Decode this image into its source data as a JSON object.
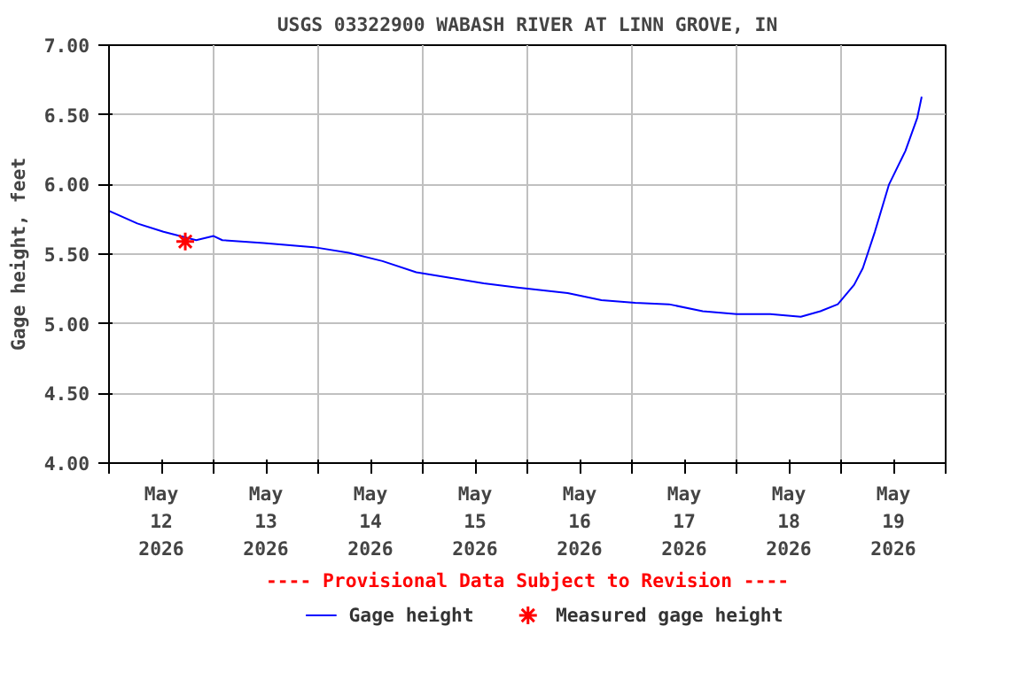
{
  "chart_data": {
    "type": "line",
    "title": "USGS 03322900 WABASH RIVER AT LINN GROVE, IN",
    "ylabel": "Gage height, feet",
    "annotations": [
      "---- Provisional Data Subject to Revision ----"
    ],
    "xlim": [
      "2026-05-12T00:00",
      "2026-05-20T00:00"
    ],
    "xticks": [
      {
        "value": "2026-05-12T00:00",
        "label": null
      },
      {
        "value": "2026-05-12T12:00",
        "label": "May\n12\n2026"
      },
      {
        "value": "2026-05-13T00:00",
        "label": null
      },
      {
        "value": "2026-05-13T12:00",
        "label": "May\n13\n2026"
      },
      {
        "value": "2026-05-14T00:00",
        "label": null
      },
      {
        "value": "2026-05-14T12:00",
        "label": "May\n14\n2026"
      },
      {
        "value": "2026-05-15T00:00",
        "label": null
      },
      {
        "value": "2026-05-15T12:00",
        "label": "May\n15\n2026"
      },
      {
        "value": "2026-05-16T00:00",
        "label": null
      },
      {
        "value": "2026-05-16T12:00",
        "label": "May\n16\n2026"
      },
      {
        "value": "2026-05-17T00:00",
        "label": null
      },
      {
        "value": "2026-05-17T12:00",
        "label": "May\n17\n2026"
      },
      {
        "value": "2026-05-18T00:00",
        "label": null
      },
      {
        "value": "2026-05-18T12:00",
        "label": "May\n18\n2026"
      },
      {
        "value": "2026-05-19T00:00",
        "label": null
      },
      {
        "value": "2026-05-19T12:00",
        "label": "May\n19\n2026"
      },
      {
        "value": "2026-05-20T00:00",
        "label": null
      }
    ],
    "ylim": [
      4.0,
      7.0
    ],
    "yticks": [
      {
        "value": 4.0,
        "label": "4.00"
      },
      {
        "value": 4.5,
        "label": "4.50"
      },
      {
        "value": 5.0,
        "label": "5.00"
      },
      {
        "value": 5.5,
        "label": "5.50"
      },
      {
        "value": 6.0,
        "label": "6.00"
      },
      {
        "value": 6.5,
        "label": "6.50"
      },
      {
        "value": 7.0,
        "label": "7.00"
      }
    ],
    "grid": true,
    "legend": "bottom",
    "series": [
      {
        "name": "Gage height",
        "color": "#0000ff",
        "marker": "none",
        "x": [
          "2026-05-12T00:00",
          "2026-05-12T06:30",
          "2026-05-12T12:30",
          "2026-05-12T16:15",
          "2026-05-12T20:00",
          "2026-05-13T00:00",
          "2026-05-13T02:00",
          "2026-05-13T11:30",
          "2026-05-13T23:00",
          "2026-05-14T07:00",
          "2026-05-14T14:45",
          "2026-05-14T22:30",
          "2026-05-15T06:15",
          "2026-05-15T14:00",
          "2026-05-15T21:45",
          "2026-05-16T09:15",
          "2026-05-16T17:00",
          "2026-05-17T00:45",
          "2026-05-17T08:30",
          "2026-05-17T16:15",
          "2026-05-18T00:00",
          "2026-05-18T07:45",
          "2026-05-18T14:45",
          "2026-05-18T19:15",
          "2026-05-18T23:15",
          "2026-05-19T03:00",
          "2026-05-19T05:00",
          "2026-05-19T07:45",
          "2026-05-19T11:00",
          "2026-05-19T14:45",
          "2026-05-19T17:30",
          "2026-05-19T18:30"
        ],
        "values": [
          5.81,
          5.72,
          5.66,
          5.63,
          5.6,
          5.63,
          5.6,
          5.58,
          5.55,
          5.51,
          5.45,
          5.37,
          5.33,
          5.29,
          5.26,
          5.22,
          5.17,
          5.15,
          5.14,
          5.09,
          5.07,
          5.07,
          5.05,
          5.09,
          5.14,
          5.28,
          5.4,
          5.66,
          6.0,
          6.24,
          6.48,
          6.63
        ]
      },
      {
        "name": "Measured gage height",
        "type": "scatter",
        "color": "#ff0000",
        "marker": "cross",
        "x": [
          "2026-05-12T17:30"
        ],
        "values": [
          5.59
        ]
      }
    ]
  }
}
